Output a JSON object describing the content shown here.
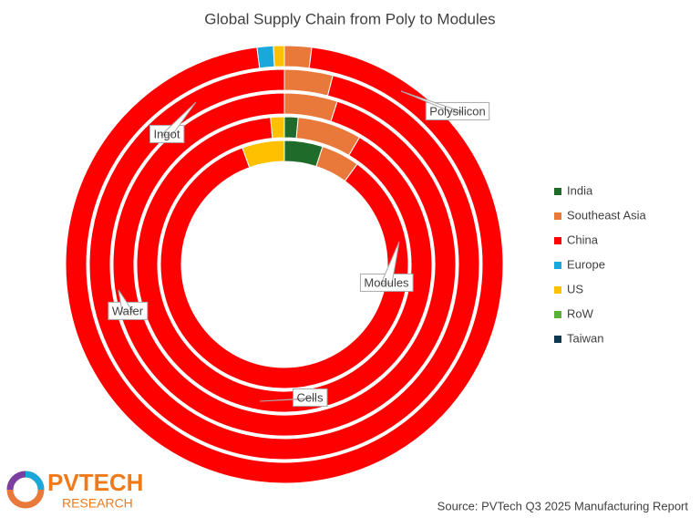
{
  "chart_data": {
    "type": "multi-donut",
    "title": "Global Supply Chain from Poly to Modules",
    "categories": [
      "Polysilicon",
      "Ingot",
      "Wafer",
      "Cells",
      "Modules"
    ],
    "series": [
      {
        "name": "India",
        "color": "#1e6b2a",
        "values": [
          0,
          0,
          0,
          1.5,
          5
        ]
      },
      {
        "name": "Southeast Asia",
        "color": "#e8793a",
        "values": [
          2,
          4,
          5,
          7,
          5
        ]
      },
      {
        "name": "China",
        "color": "#ff0000",
        "values": [
          96,
          96,
          95,
          90,
          84.5
        ]
      },
      {
        "name": "Europe",
        "color": "#1aa7d9",
        "values": [
          1.2,
          0,
          0,
          0,
          0
        ]
      },
      {
        "name": "US",
        "color": "#ffc000",
        "values": [
          0.8,
          0,
          0,
          1.5,
          5.5
        ]
      },
      {
        "name": "RoW",
        "color": "#59b038",
        "values": [
          0,
          0,
          0,
          0,
          0
        ]
      },
      {
        "name": "Taiwan",
        "color": "#0e3750",
        "values": [
          0,
          0,
          0,
          0,
          0
        ]
      }
    ],
    "legend": "right",
    "source": "Source: PVTech Q3 2025 Manufacturing Report",
    "logo": {
      "name": "PVTECH",
      "sub": "RESEARCH"
    }
  }
}
